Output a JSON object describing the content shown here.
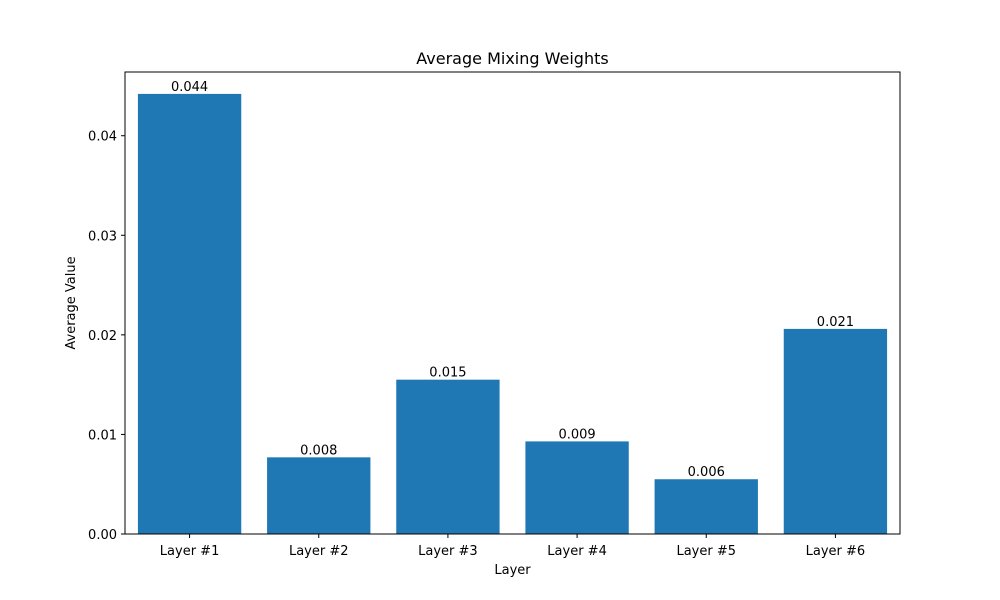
{
  "chart_data": {
    "type": "bar",
    "title": "Average Mixing Weights",
    "xlabel": "Layer",
    "ylabel": "Average Value",
    "categories": [
      "Layer #1",
      "Layer #2",
      "Layer #3",
      "Layer #4",
      "Layer #5",
      "Layer #6"
    ],
    "values": [
      0.0442,
      0.0077,
      0.0155,
      0.0093,
      0.0055,
      0.0206
    ],
    "value_labels": [
      "0.044",
      "0.008",
      "0.015",
      "0.009",
      "0.006",
      "0.021"
    ],
    "ylim": [
      0,
      0.0464
    ],
    "yticks": [
      0,
      0.01,
      0.02,
      0.03,
      0.04
    ],
    "ytick_labels": [
      "0.00",
      "0.01",
      "0.02",
      "0.03",
      "0.04"
    ],
    "bar_color": "#1f77b4",
    "grid": false,
    "legend": "none"
  }
}
